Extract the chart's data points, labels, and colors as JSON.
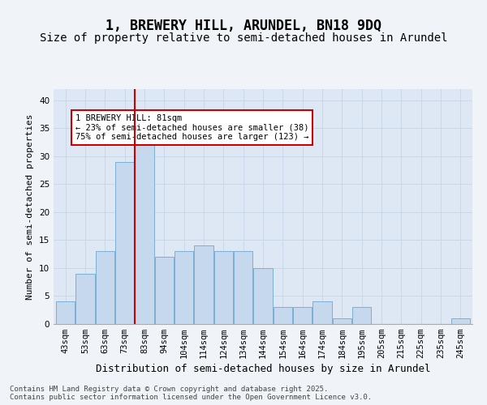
{
  "title": "1, BREWERY HILL, ARUNDEL, BN18 9DQ",
  "subtitle": "Size of property relative to semi-detached houses in Arundel",
  "xlabel": "Distribution of semi-detached houses by size in Arundel",
  "ylabel": "Number of semi-detached properties",
  "bins": [
    "43sqm",
    "53sqm",
    "63sqm",
    "73sqm",
    "83sqm",
    "94sqm",
    "104sqm",
    "114sqm",
    "124sqm",
    "134sqm",
    "144sqm",
    "154sqm",
    "164sqm",
    "174sqm",
    "184sqm",
    "195sqm",
    "205sqm",
    "215sqm",
    "225sqm",
    "235sqm",
    "245sqm"
  ],
  "values": [
    4,
    9,
    13,
    29,
    32,
    12,
    13,
    14,
    13,
    13,
    10,
    3,
    3,
    4,
    1,
    3,
    0,
    0,
    0,
    0,
    1
  ],
  "bar_color": "#c5d8ed",
  "bar_edge_color": "#7aafd4",
  "annotation_text": "1 BREWERY HILL: 81sqm\n← 23% of semi-detached houses are smaller (38)\n75% of semi-detached houses are larger (123) →",
  "annotation_box_facecolor": "#ffffff",
  "annotation_box_edgecolor": "#cc0000",
  "vline_color": "#cc0000",
  "ylim": [
    0,
    42
  ],
  "yticks": [
    0,
    5,
    10,
    15,
    20,
    25,
    30,
    35,
    40
  ],
  "grid_color": "#c8d8e8",
  "background_color": "#dde8f4",
  "fig_facecolor": "#f0f4f8",
  "footnote": "Contains HM Land Registry data © Crown copyright and database right 2025.\nContains public sector information licensed under the Open Government Licence v3.0.",
  "title_fontsize": 12,
  "subtitle_fontsize": 10,
  "xlabel_fontsize": 9,
  "ylabel_fontsize": 8,
  "tick_fontsize": 7.5,
  "annotation_fontsize": 7.5,
  "footnote_fontsize": 6.5
}
